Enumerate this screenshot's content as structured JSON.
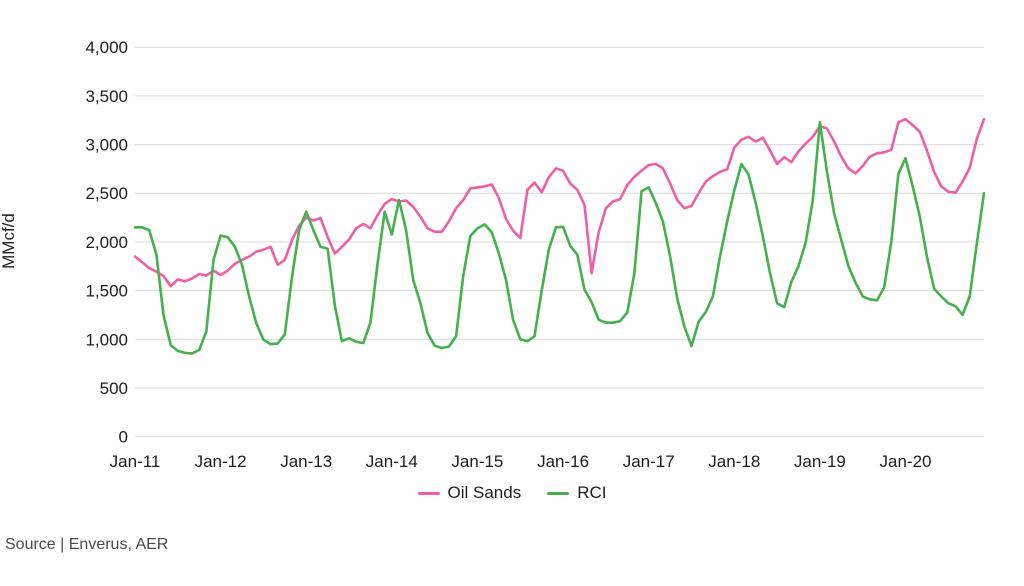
{
  "chart": {
    "y_axis_label": "MMcf/d",
    "y_ticks": [
      "4,000",
      "3,500",
      "3,000",
      "2,500",
      "2,000",
      "1,500",
      "1,000",
      "500",
      "0"
    ],
    "x_ticks": [
      "Jan-11",
      "Jan-12",
      "Jan-13",
      "Jan-14",
      "Jan-15",
      "Jan-16",
      "Jan-17",
      "Jan-18",
      "Jan-19",
      "Jan-20"
    ]
  },
  "legend": {
    "oil_sands": "Oil Sands",
    "rci": "RCI"
  },
  "footer": {
    "source": "Source | Enverus, AER"
  },
  "colors": {
    "oil_sands": "#ee5fa4",
    "rci": "#45b04c",
    "gridline": "#d9d9d9",
    "tick_text": "#1d1d1d",
    "source_text": "#4a4a4c"
  },
  "chart_data": {
    "type": "line",
    "title": "",
    "ylabel": "MMcf/d",
    "ylim": [
      0,
      4000
    ],
    "y_tick_step": 500,
    "grid": true,
    "legend_position": "bottom",
    "x_start": "Jan-2011",
    "x_end": "Dec-2020",
    "x_interval": "monthly",
    "x_tick_labels": [
      "Jan-11",
      "Jan-12",
      "Jan-13",
      "Jan-14",
      "Jan-15",
      "Jan-16",
      "Jan-17",
      "Jan-18",
      "Jan-19",
      "Jan-20"
    ],
    "units": "MMcf/d",
    "series": [
      {
        "name": "Oil Sands",
        "color": "#ee5fa4",
        "values": [
          1850,
          1790,
          1730,
          1695,
          1650,
          1545,
          1615,
          1595,
          1625,
          1670,
          1655,
          1705,
          1660,
          1705,
          1775,
          1815,
          1850,
          1900,
          1920,
          1950,
          1765,
          1815,
          2020,
          2165,
          2250,
          2220,
          2245,
          2050,
          1880,
          1950,
          2025,
          2140,
          2185,
          2140,
          2275,
          2390,
          2440,
          2415,
          2425,
          2360,
          2260,
          2140,
          2105,
          2105,
          2210,
          2345,
          2430,
          2550,
          2560,
          2570,
          2590,
          2450,
          2235,
          2115,
          2040,
          2535,
          2610,
          2510,
          2665,
          2755,
          2730,
          2600,
          2535,
          2380,
          1680,
          2100,
          2345,
          2415,
          2440,
          2585,
          2670,
          2730,
          2790,
          2800,
          2755,
          2600,
          2430,
          2345,
          2370,
          2500,
          2620,
          2675,
          2720,
          2745,
          2970,
          3050,
          3080,
          3030,
          3070,
          2940,
          2800,
          2870,
          2820,
          2930,
          3010,
          3080,
          3190,
          3165,
          3030,
          2875,
          2755,
          2705,
          2780,
          2875,
          2910,
          2920,
          2945,
          3230,
          3260,
          3200,
          3130,
          2940,
          2720,
          2570,
          2515,
          2505,
          2620,
          2760,
          3060,
          3260
        ]
      },
      {
        "name": "RCI",
        "color": "#45b04c",
        "values": [
          2150,
          2150,
          2120,
          1870,
          1250,
          940,
          880,
          860,
          855,
          890,
          1080,
          1815,
          2065,
          2048,
          1950,
          1765,
          1435,
          1165,
          995,
          950,
          955,
          1050,
          1640,
          2120,
          2310,
          2120,
          1950,
          1930,
          1350,
          980,
          1010,
          975,
          960,
          1170,
          1780,
          2310,
          2075,
          2430,
          2120,
          1610,
          1370,
          1065,
          935,
          910,
          925,
          1030,
          1650,
          2060,
          2140,
          2180,
          2100,
          1880,
          1610,
          1200,
          1000,
          980,
          1030,
          1500,
          1920,
          2150,
          2155,
          1960,
          1870,
          1510,
          1380,
          1200,
          1170,
          1170,
          1185,
          1275,
          1680,
          2520,
          2560,
          2400,
          2210,
          1850,
          1420,
          1130,
          930,
          1180,
          1280,
          1440,
          1850,
          2210,
          2530,
          2800,
          2690,
          2400,
          2060,
          1680,
          1370,
          1330,
          1590,
          1750,
          1990,
          2430,
          3230,
          2720,
          2290,
          2020,
          1750,
          1580,
          1440,
          1410,
          1400,
          1530,
          2000,
          2700,
          2860,
          2570,
          2260,
          1850,
          1520,
          1440,
          1370,
          1340,
          1250,
          1440,
          1990,
          2500
        ]
      }
    ]
  }
}
